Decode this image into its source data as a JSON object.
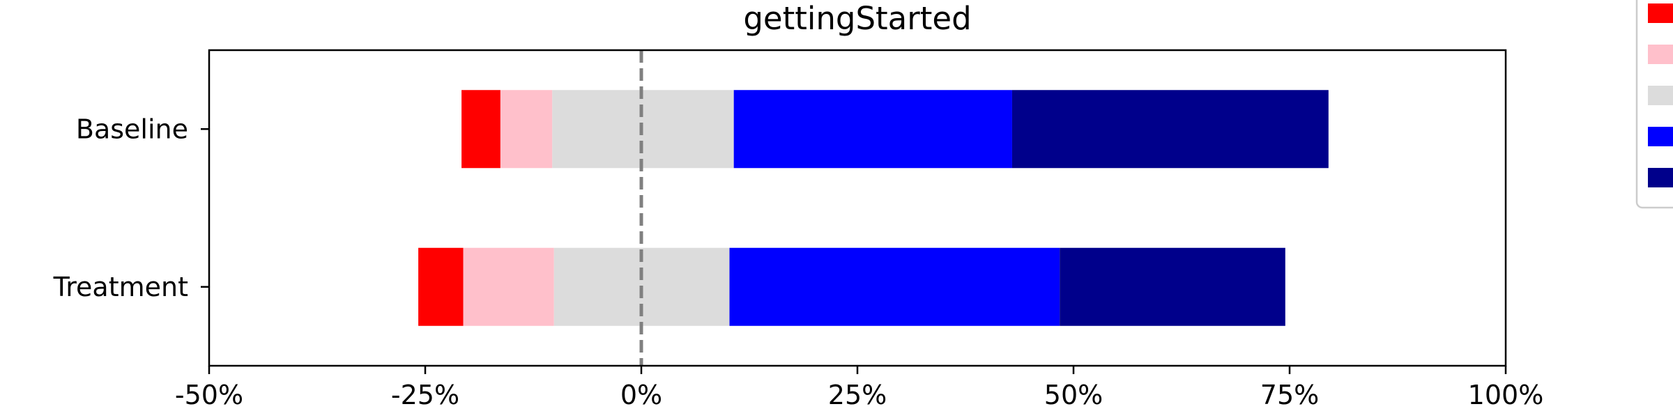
{
  "chart_data": {
    "type": "bar",
    "orientation": "horizontal",
    "stacked": "diverging",
    "title": "gettingStarted",
    "xlabel": "",
    "ylabel": "",
    "xlim": [
      -50,
      100
    ],
    "x_ticks": [
      -50,
      -25,
      0,
      25,
      50,
      75,
      100
    ],
    "x_tick_labels": [
      "-50%",
      "-25%",
      "0%",
      "25%",
      "50%",
      "75%",
      "100%"
    ],
    "zero_line": "dashed",
    "grid": false,
    "legend_placement": "right, outside plot (partially cropped)",
    "categories": [
      "Baseline",
      "Treatment"
    ],
    "series": [
      {
        "color": "#ff0000",
        "values": [
          4.5,
          5.2
        ]
      },
      {
        "color": "#ffc0cb",
        "values": [
          6.0,
          10.5
        ]
      },
      {
        "color": "#dcdcdc",
        "values": [
          21.0,
          20.3
        ]
      },
      {
        "color": "#0000ff",
        "values": [
          32.2,
          38.2
        ]
      },
      {
        "color": "#00008b",
        "values": [
          36.6,
          26.1
        ]
      }
    ],
    "bar_left_edges": [
      -20.8,
      -25.8
    ]
  }
}
